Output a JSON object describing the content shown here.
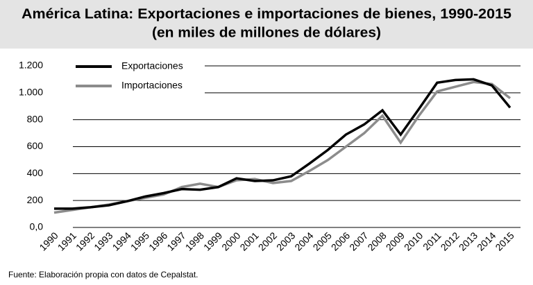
{
  "chart_data": {
    "type": "line",
    "title": "América Latina: Exportaciones e importaciones de bienes, 1990-2015",
    "subtitle": "(en miles de millones de dólares)",
    "source": "Fuente: Elaboración propia con datos de Cepalstat.",
    "categories": [
      "1990",
      "1991",
      "1992",
      "1993",
      "1994",
      "1995",
      "1996",
      "1997",
      "1998",
      "1999",
      "2000",
      "2001",
      "2002",
      "2003",
      "2004",
      "2005",
      "2006",
      "2007",
      "2008",
      "2009",
      "2010",
      "2011",
      "2012",
      "2013",
      "2014",
      "2015"
    ],
    "series": [
      {
        "name": "Exportaciones",
        "color": "#000000",
        "values": [
          140,
          140,
          150,
          165,
          195,
          230,
          255,
          285,
          280,
          300,
          365,
          345,
          350,
          380,
          475,
          575,
          690,
          765,
          870,
          690,
          880,
          1075,
          1095,
          1100,
          1055,
          890
        ]
      },
      {
        "name": "Importaciones",
        "color": "#8c8c8c",
        "values": [
          110,
          130,
          150,
          170,
          195,
          220,
          245,
          300,
          325,
          300,
          350,
          360,
          330,
          345,
          420,
          500,
          600,
          700,
          830,
          630,
          830,
          1010,
          1045,
          1080,
          1065,
          960
        ]
      }
    ],
    "ylim": [
      0,
      1200
    ],
    "yticks": [
      {
        "value": 0,
        "label": "0,0"
      },
      200,
      400,
      600,
      800,
      {
        "value": 1000,
        "label": "1.000"
      },
      {
        "value": 1200,
        "label": "1.200"
      }
    ],
    "grid": true,
    "legend": "upper-left"
  }
}
